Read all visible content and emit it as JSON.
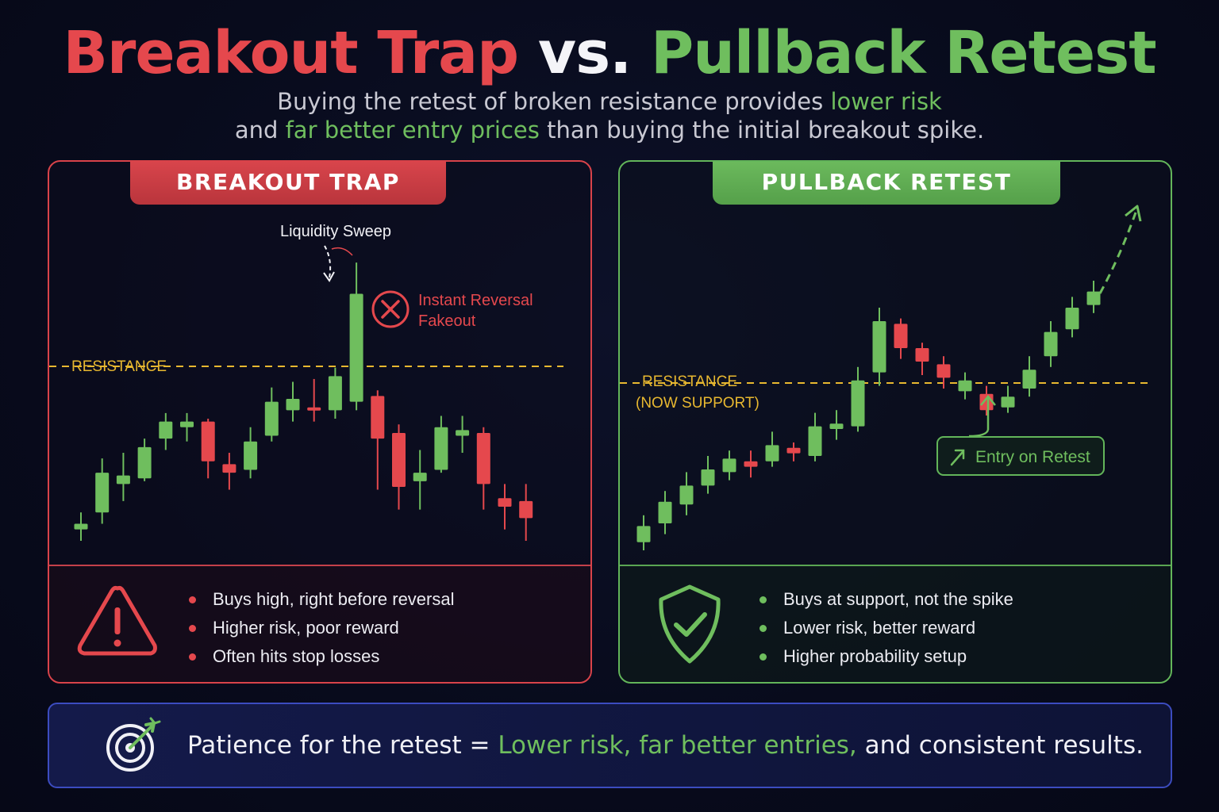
{
  "title": {
    "part1": "Breakout Trap",
    "part2": " vs. ",
    "part3": "Pullback Retest"
  },
  "subtitle": {
    "line1_pre": "Buying the retest of broken resistance provides ",
    "line1_hl": "lower risk",
    "line2_pre": "and ",
    "line2_hl": "far better entry prices",
    "line2_post": " than buying the initial breakout spike."
  },
  "left_panel": {
    "tab": "BREAKOUT TRAP",
    "resistance_label": "RESISTANCE",
    "sweep_label": "Liquidity Sweep",
    "reversal_line1": "Instant Reversal",
    "reversal_line2": "Fakeout",
    "icons": {
      "warning": "warning-triangle-icon",
      "reversal": "x-circle-icon",
      "sweep": "dashed-arrow-down-icon"
    },
    "bullets": [
      "Buys high, right before reversal",
      "Higher risk, poor reward",
      "Often hits stop losses"
    ],
    "colors": {
      "accent": "#e5484d",
      "bull": "#6fbe5e",
      "bear": "#e5484d",
      "resistance": "#e8b830"
    }
  },
  "right_panel": {
    "tab": "PULLBACK RETEST",
    "resistance_label_line1": "RESISTANCE",
    "resistance_label_line2": "(NOW SUPPORT)",
    "entry_label": "Entry on Retest",
    "icons": {
      "shield": "shield-check-icon",
      "entry": "arrow-up-right-icon",
      "trend": "dashed-arrow-up-icon"
    },
    "bullets": [
      "Buys at support, not the spike",
      "Lower risk, better reward",
      "Higher probability setup"
    ],
    "colors": {
      "accent": "#6fbe5e",
      "bull": "#6fbe5e",
      "bear": "#e5484d",
      "resistance": "#e8b830"
    }
  },
  "footer": {
    "icon": "target-icon",
    "text_pre": "Patience for the retest = ",
    "text_hl": "Lower risk, far better entries,",
    "text_post": " and consistent results."
  },
  "chart_data": [
    {
      "type": "candlestick",
      "title": "BREAKOUT TRAP",
      "ylim": [
        0,
        100
      ],
      "resistance_level": 50,
      "candles": [
        {
          "o": 4,
          "c": 6,
          "h": 10,
          "l": 0
        },
        {
          "o": 10,
          "c": 24,
          "h": 29,
          "l": 6
        },
        {
          "o": 20,
          "c": 23,
          "h": 31,
          "l": 14
        },
        {
          "o": 22,
          "c": 33,
          "h": 36,
          "l": 21
        },
        {
          "o": 36,
          "c": 42,
          "h": 45,
          "l": 32
        },
        {
          "o": 40,
          "c": 42,
          "h": 45,
          "l": 35
        },
        {
          "o": 42,
          "c": 28,
          "h": 43,
          "l": 22
        },
        {
          "o": 27,
          "c": 24,
          "h": 31,
          "l": 18
        },
        {
          "o": 25,
          "c": 35,
          "h": 40,
          "l": 22
        },
        {
          "o": 37,
          "c": 49,
          "h": 54,
          "l": 35
        },
        {
          "o": 46,
          "c": 50,
          "h": 56,
          "l": 42
        },
        {
          "o": 47,
          "c": 46,
          "h": 57,
          "l": 42
        },
        {
          "o": 46,
          "c": 58,
          "h": 61,
          "l": 43
        },
        {
          "o": 49,
          "c": 87,
          "h": 98,
          "l": 46
        },
        {
          "o": 51,
          "c": 36,
          "h": 53,
          "l": 18
        },
        {
          "o": 38,
          "c": 19,
          "h": 41,
          "l": 11
        },
        {
          "o": 21,
          "c": 24,
          "h": 32,
          "l": 11
        },
        {
          "o": 25,
          "c": 40,
          "h": 44,
          "l": 24
        },
        {
          "o": 37,
          "c": 39,
          "h": 44,
          "l": 31
        },
        {
          "o": 38,
          "c": 20,
          "h": 40,
          "l": 11
        },
        {
          "o": 15,
          "c": 12,
          "h": 20,
          "l": 4
        },
        {
          "o": 14,
          "c": 8,
          "h": 20,
          "l": 0
        }
      ]
    },
    {
      "type": "candlestick",
      "title": "PULLBACK RETEST",
      "ylim": [
        0,
        100
      ],
      "resistance_level": 50,
      "candles": [
        {
          "o": 3,
          "c": 9,
          "h": 13,
          "l": 0
        },
        {
          "o": 10,
          "c": 18,
          "h": 22,
          "l": 6
        },
        {
          "o": 17,
          "c": 24,
          "h": 29,
          "l": 13
        },
        {
          "o": 24,
          "c": 30,
          "h": 35,
          "l": 21
        },
        {
          "o": 29,
          "c": 34,
          "h": 37,
          "l": 26
        },
        {
          "o": 33,
          "c": 31,
          "h": 37,
          "l": 27
        },
        {
          "o": 33,
          "c": 39,
          "h": 44,
          "l": 31
        },
        {
          "o": 38,
          "c": 36,
          "h": 40,
          "l": 33
        },
        {
          "o": 35,
          "c": 46,
          "h": 51,
          "l": 33
        },
        {
          "o": 45,
          "c": 47,
          "h": 52,
          "l": 41
        },
        {
          "o": 46,
          "c": 63,
          "h": 68,
          "l": 44
        },
        {
          "o": 66,
          "c": 85,
          "h": 90,
          "l": 61
        },
        {
          "o": 84,
          "c": 75,
          "h": 86,
          "l": 71
        },
        {
          "o": 75,
          "c": 70,
          "h": 77,
          "l": 65
        },
        {
          "o": 69,
          "c": 64,
          "h": 72,
          "l": 60
        },
        {
          "o": 59,
          "c": 63,
          "h": 66,
          "l": 56
        },
        {
          "o": 58,
          "c": 52,
          "h": 61,
          "l": 50
        },
        {
          "o": 53,
          "c": 57,
          "h": 61,
          "l": 51
        },
        {
          "o": 60,
          "c": 67,
          "h": 72,
          "l": 57
        },
        {
          "o": 72,
          "c": 81,
          "h": 85,
          "l": 68
        },
        {
          "o": 82,
          "c": 90,
          "h": 94,
          "l": 79
        },
        {
          "o": 91,
          "c": 96,
          "h": 100,
          "l": 88
        }
      ]
    }
  ]
}
